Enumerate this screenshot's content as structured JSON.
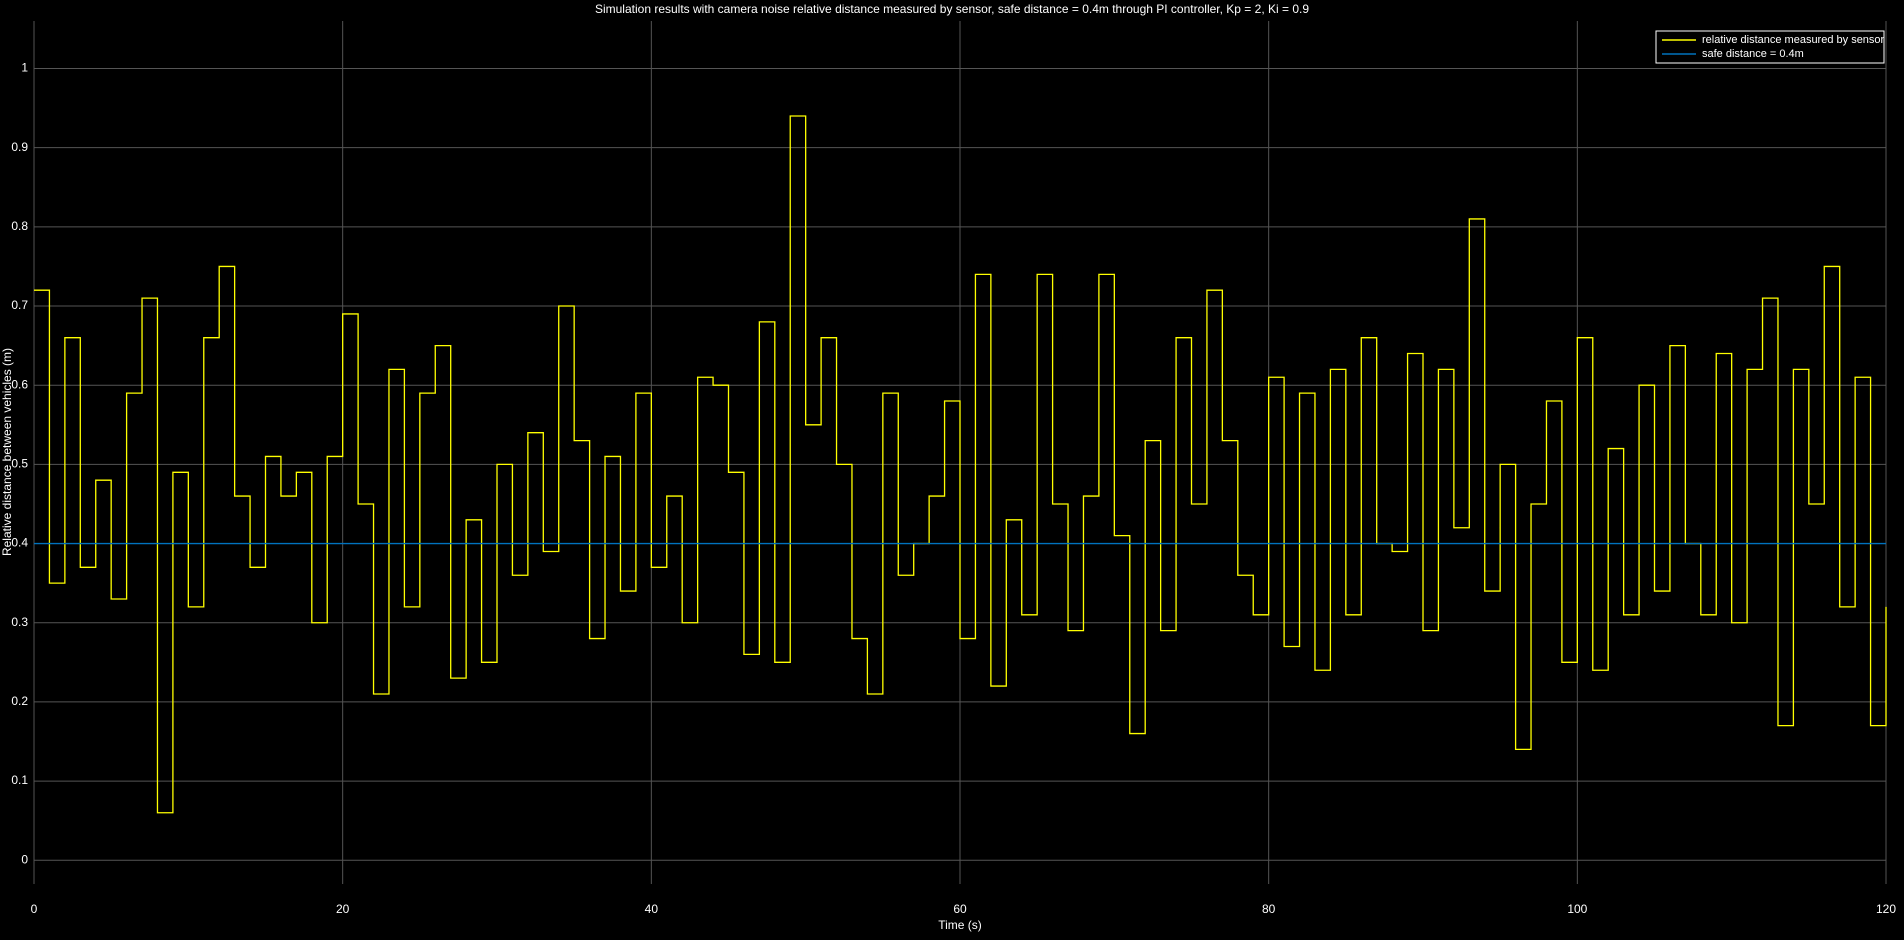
{
  "chart_data": {
    "type": "stairs",
    "title": "Simulation results with camera noise relative distance measured by sensor, safe distance = 0.4m through PI controller, Kp = 2, Ki = 0.9",
    "x_label": "Time (s)",
    "y_label": "Relative distance between vehicles (m)",
    "xlim": [
      0,
      120
    ],
    "ylim": [
      -0.03,
      1.06
    ],
    "xticks": [
      0,
      20,
      40,
      60,
      80,
      100,
      120
    ],
    "yticks": [
      0,
      0.1,
      0.2,
      0.3,
      0.4,
      0.5,
      0.6,
      0.7,
      0.8,
      0.9,
      1
    ],
    "grid": true,
    "legend": "upper right",
    "series": [
      {
        "name": "relative distance measured by sensor",
        "color": "#ffff00",
        "x": [
          0,
          1,
          2,
          3,
          4,
          5,
          6,
          7,
          8,
          9,
          10,
          11,
          12,
          13,
          14,
          15,
          16,
          17,
          18,
          19,
          20,
          21,
          22,
          23,
          24,
          25,
          26,
          27,
          28,
          29,
          30,
          31,
          32,
          33,
          34,
          35,
          36,
          37,
          38,
          39,
          40,
          41,
          42,
          43,
          44,
          45,
          46,
          47,
          48,
          49,
          50,
          51,
          52,
          53,
          54,
          55,
          56,
          57,
          58,
          59,
          60,
          61,
          62,
          63,
          64,
          65,
          66,
          67,
          68,
          69,
          70,
          71,
          72,
          73,
          74,
          75,
          76,
          77,
          78,
          79,
          80,
          81,
          82,
          83,
          84,
          85,
          86,
          87,
          88,
          89,
          90,
          91,
          92,
          93,
          94,
          95,
          96,
          97,
          98,
          99,
          100,
          101,
          102,
          103,
          104,
          105,
          106,
          107,
          108,
          109,
          110,
          111,
          112,
          113,
          114,
          115,
          116,
          117,
          118,
          119,
          120
        ],
        "values": [
          0.72,
          0.35,
          0.66,
          0.37,
          0.48,
          0.33,
          0.59,
          0.71,
          0.06,
          0.49,
          0.32,
          0.66,
          0.75,
          0.46,
          0.37,
          0.51,
          0.46,
          0.49,
          0.3,
          0.51,
          0.69,
          0.45,
          0.21,
          0.62,
          0.32,
          0.59,
          0.65,
          0.23,
          0.43,
          0.25,
          0.5,
          0.36,
          0.54,
          0.39,
          0.7,
          0.53,
          0.28,
          0.51,
          0.34,
          0.59,
          0.37,
          0.46,
          0.3,
          0.61,
          0.6,
          0.49,
          0.26,
          0.68,
          0.25,
          0.94,
          0.55,
          0.66,
          0.5,
          0.28,
          0.21,
          0.59,
          0.36,
          0.4,
          0.46,
          0.58,
          0.28,
          0.74,
          0.22,
          0.43,
          0.31,
          0.74,
          0.45,
          0.29,
          0.46,
          0.74,
          0.41,
          0.16,
          0.53,
          0.29,
          0.66,
          0.45,
          0.72,
          0.53,
          0.36,
          0.31,
          0.61,
          0.27,
          0.59,
          0.24,
          0.62,
          0.31,
          0.66,
          0.4,
          0.39,
          0.64,
          0.29,
          0.62,
          0.42,
          0.81,
          0.34,
          0.5,
          0.14,
          0.45,
          0.58,
          0.25,
          0.66,
          0.24,
          0.52,
          0.31,
          0.6,
          0.34,
          0.65,
          0.4,
          0.31,
          0.64,
          0.3,
          0.62,
          0.71,
          0.17,
          0.62,
          0.45,
          0.75,
          0.32,
          0.61,
          0.17,
          0.32
        ]
      },
      {
        "name": "safe distance = 0.4m",
        "color": "#0072bd",
        "x": [
          0,
          120
        ],
        "values": [
          0.4,
          0.4
        ]
      }
    ]
  }
}
